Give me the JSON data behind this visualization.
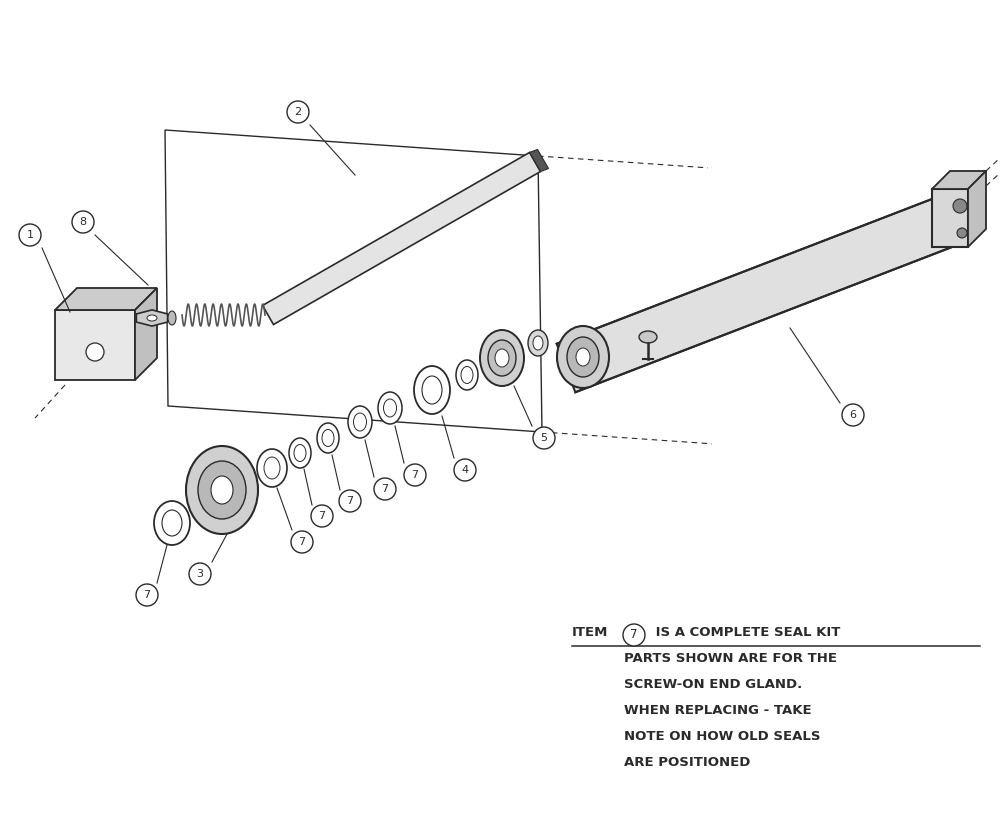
{
  "bg_color": "#ffffff",
  "lc": "#2a2a2a",
  "fl": "#d8d8d8",
  "fm": "#b0b0b0",
  "fd": "#808080",
  "fig_width": 10.0,
  "fig_height": 8.24,
  "note_line0_a": "ITEM",
  "note_line0_b": " IS A COMPLETE SEAL KIT",
  "note_circled": "7",
  "note_lines": [
    "PARTS SHOWN ARE FOR THE",
    "SCREW-ON END GLAND.",
    "WHEN REPLACING - TAKE",
    "NOTE ON HOW OLD SEALS",
    "ARE POSITIONED"
  ]
}
